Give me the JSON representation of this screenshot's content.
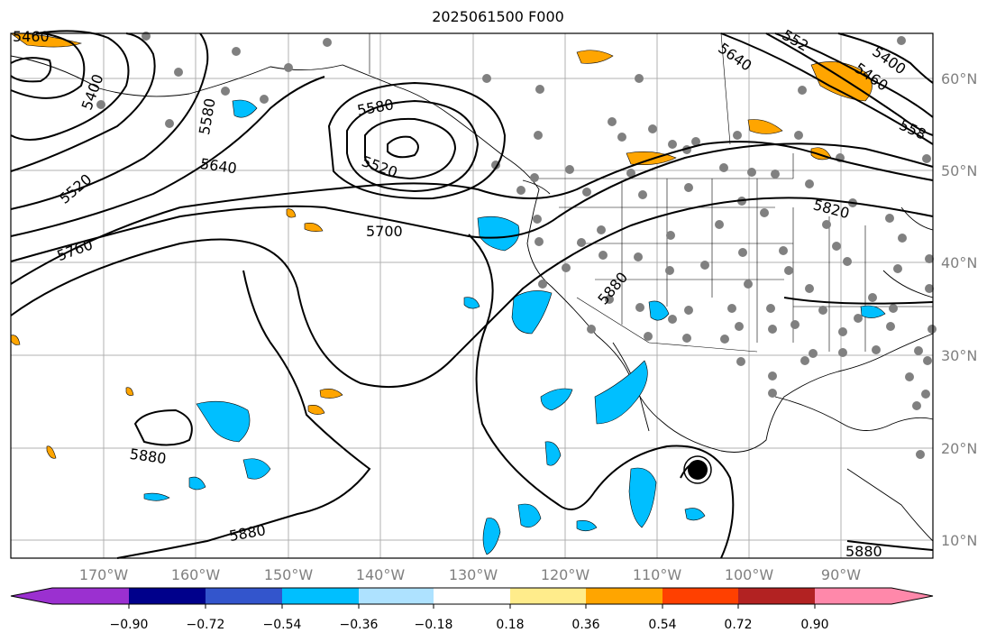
{
  "title": "2025061500 F000",
  "axes": {
    "lon_labels": [
      "170°W",
      "160°W",
      "150°W",
      "140°W",
      "130°W",
      "120°W",
      "110°W",
      "100°W",
      "90°W"
    ],
    "lat_labels": [
      "60°N",
      "50°N",
      "40°N",
      "30°N",
      "20°N",
      "10°N"
    ]
  },
  "contour_labels": [
    {
      "text": "5460"
    },
    {
      "text": "5400"
    },
    {
      "text": "5580"
    },
    {
      "text": "5580"
    },
    {
      "text": "5520"
    },
    {
      "text": "5520"
    },
    {
      "text": "5640"
    },
    {
      "text": "5760"
    },
    {
      "text": "5700"
    },
    {
      "text": "5640"
    },
    {
      "text": "5400"
    },
    {
      "text": "5460"
    },
    {
      "text": "552"
    },
    {
      "text": "558"
    },
    {
      "text": "5820"
    },
    {
      "text": "5880"
    },
    {
      "text": "5880"
    },
    {
      "text": "5880"
    },
    {
      "text": "5880"
    }
  ],
  "colorbar": {
    "colors": [
      "#9b30d0",
      "#00008b",
      "#3355cc",
      "#00bfff",
      "#aee2ff",
      "#ffffff",
      "#ffec8b",
      "#ffa500",
      "#ff4000",
      "#b22222",
      "#ff88aa"
    ],
    "tick_labels": [
      "−0.90",
      "−0.72",
      "−0.54",
      "−0.36",
      "−0.18",
      "0.18",
      "0.36",
      "0.54",
      "0.72",
      "0.90"
    ]
  },
  "styles": {
    "grid_color": "#b0b0b0",
    "contour_color": "#000000",
    "dot_color": "#808080",
    "negative_fill": "#00bfff",
    "positive_fill": "#ffa500"
  }
}
